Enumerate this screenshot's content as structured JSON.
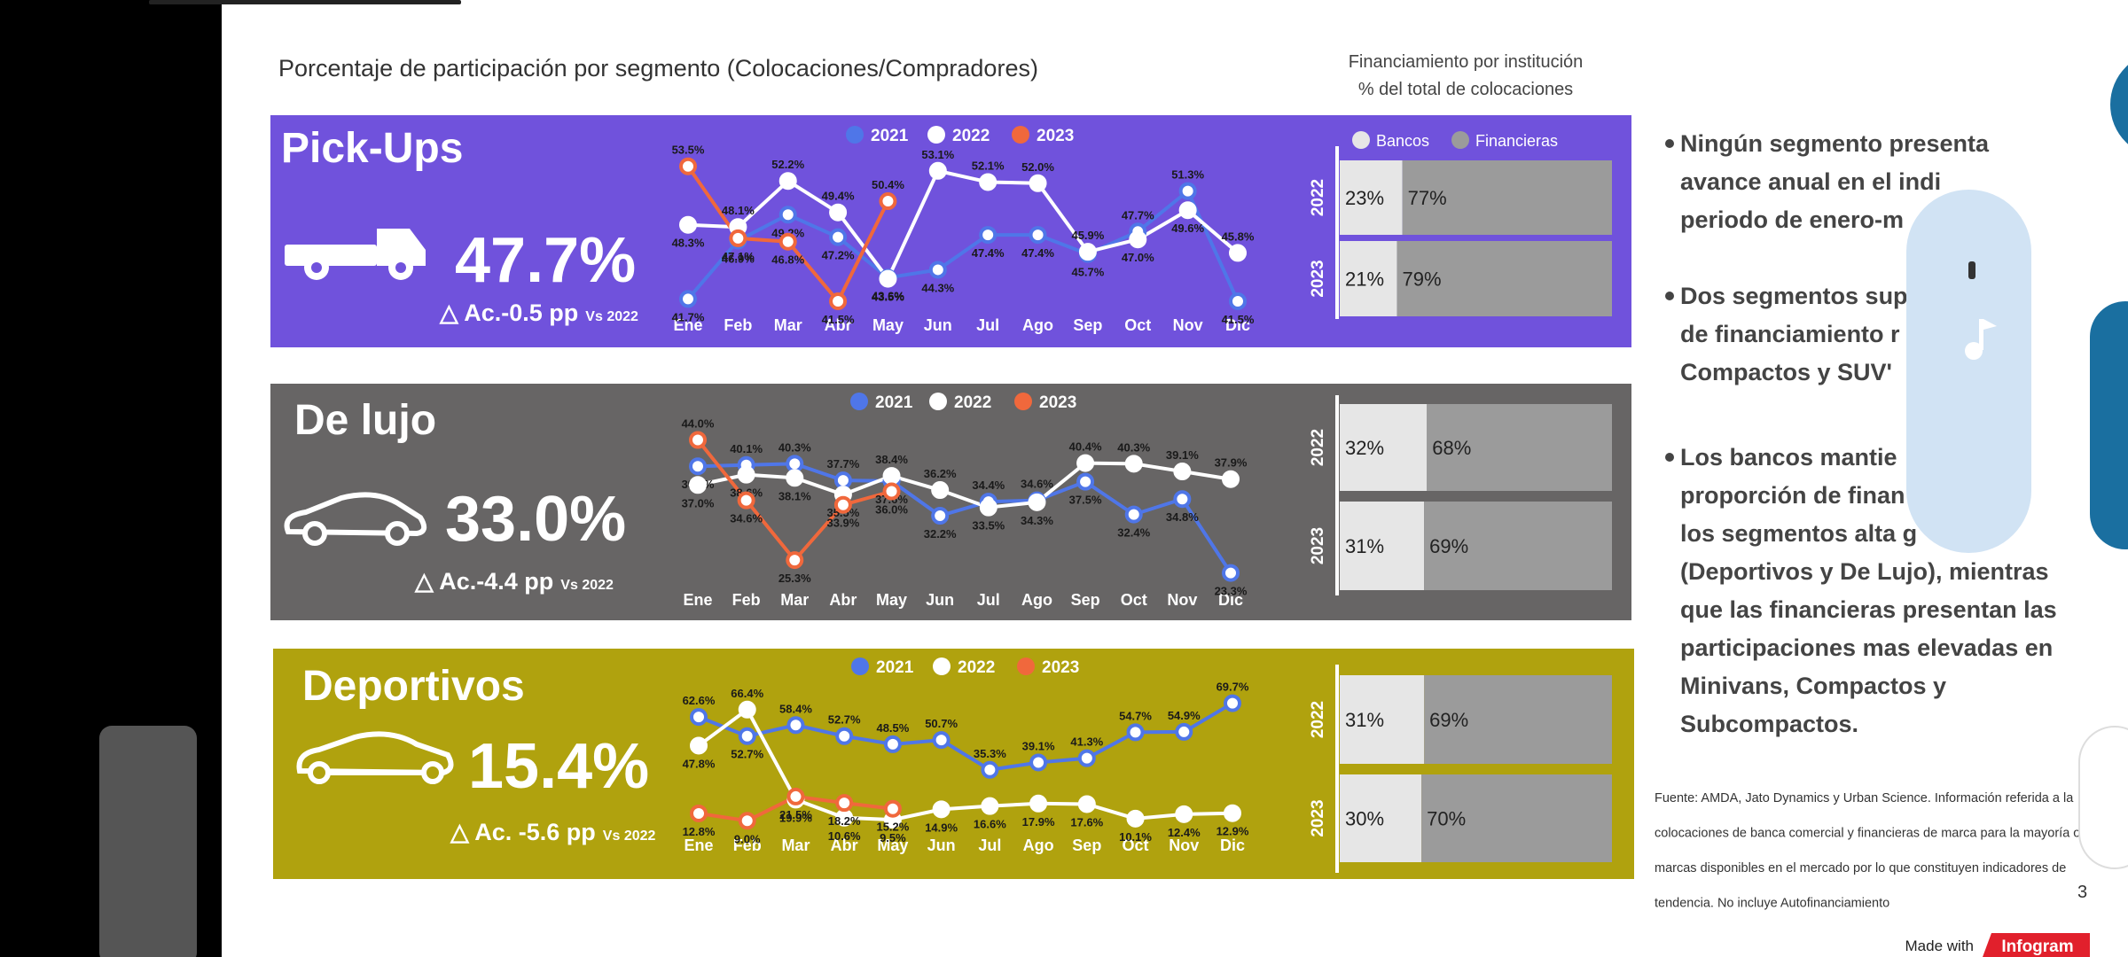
{
  "title": "Porcentaje de participación por segmento (Colocaciones/Compradores)",
  "chart_data": [
    {
      "type": "line",
      "title": "Pick-Ups",
      "kpi": "47.7%",
      "delta": "△ Ac.-0.5 pp",
      "delta_note": "Vs 2022",
      "background": "#7052dc",
      "categories": [
        "Ene",
        "Feb",
        "Mar",
        "Abr",
        "May",
        "Jun",
        "Jul",
        "Ago",
        "Sep",
        "Oct",
        "Nov",
        "Dic"
      ],
      "ylim": [
        40,
        56
      ],
      "series": [
        {
          "name": "2021",
          "color": "#4f76e8",
          "values": [
            41.7,
            46.9,
            49.2,
            47.2,
            43.6,
            44.3,
            47.4,
            47.4,
            45.7,
            47.7,
            51.3,
            41.5
          ],
          "value_labels": [
            "41.7%",
            "46.9%",
            "49.2%",
            "47.2%",
            "43.6%",
            "44.3%",
            "47.4%",
            "47.4%",
            "45.7%",
            "47.7%",
            "51.3%",
            "41.5%"
          ]
        },
        {
          "name": "2022",
          "color": "#ffffff",
          "values": [
            48.3,
            48.1,
            52.2,
            49.4,
            43.5,
            53.1,
            52.1,
            52.0,
            45.9,
            47.0,
            49.6,
            45.8
          ],
          "value_labels": [
            "48.3%",
            "48.1%",
            "52.2%",
            "49.4%",
            "43.5%",
            "53.1%",
            "52.1%",
            "52.0%",
            "45.9%",
            "47.0%",
            "49.6%",
            "45.8%"
          ]
        },
        {
          "name": "2023",
          "color": "#f0683c",
          "values": [
            53.5,
            47.1,
            46.8,
            41.5,
            50.4,
            null,
            null,
            null,
            null,
            null,
            null,
            null
          ],
          "value_labels": [
            "53.5%",
            "47.1%",
            "46.8%",
            "41.5%",
            "50.4%",
            null,
            null,
            null,
            null,
            null,
            null,
            null
          ]
        }
      ]
    },
    {
      "type": "line",
      "title": "De lujo",
      "kpi": "33.0%",
      "delta": "△ Ac.-4.4 pp",
      "delta_note": "Vs 2022",
      "background": "#676565",
      "categories": [
        "Ene",
        "Feb",
        "Mar",
        "Abr",
        "May",
        "Jun",
        "Jul",
        "Ago",
        "Sep",
        "Oct",
        "Nov",
        "Dic"
      ],
      "ylim": [
        22,
        46
      ],
      "series": [
        {
          "name": "2021",
          "color": "#4f76e8",
          "values": [
            39.9,
            40.1,
            40.3,
            37.7,
            37.6,
            32.2,
            34.4,
            34.6,
            37.5,
            32.4,
            34.8,
            23.3
          ],
          "value_labels": [
            "39.9%",
            "40.1%",
            "40.3%",
            "37.7%",
            "37.6%",
            "32.2%",
            "34.4%",
            "34.6%",
            "37.5%",
            "32.4%",
            "34.8%",
            "23.3%"
          ]
        },
        {
          "name": "2022",
          "color": "#ffffff",
          "values": [
            37.0,
            38.6,
            38.1,
            35.5,
            38.4,
            36.2,
            33.5,
            34.3,
            40.4,
            40.3,
            39.1,
            37.9
          ],
          "value_labels": [
            "37.0%",
            "38.6%",
            "38.1%",
            "35.5%",
            "38.4%",
            "36.2%",
            "33.5%",
            "34.3%",
            "40.4%",
            "40.3%",
            "39.1%",
            "37.9%"
          ]
        },
        {
          "name": "2023",
          "color": "#f0683c",
          "values": [
            44.0,
            34.6,
            25.3,
            33.9,
            36.0,
            null,
            null,
            null,
            null,
            null,
            null,
            null
          ],
          "value_labels": [
            "44.0%",
            "34.6%",
            "25.3%",
            "33.9%",
            "36.0%",
            null,
            null,
            null,
            null,
            null,
            null,
            null
          ]
        }
      ]
    },
    {
      "type": "line",
      "title": "Deportivos",
      "kpi": "15.4%",
      "delta": "△ Ac. -5.6 pp",
      "delta_note": "Vs 2022",
      "background": "#b0a20e",
      "categories": [
        "Ene",
        "Feb",
        "Mar",
        "Abr",
        "May",
        "Jun",
        "Jul",
        "Ago",
        "Sep",
        "Oct",
        "Nov",
        "Dic"
      ],
      "ylim": [
        5,
        75
      ],
      "series": [
        {
          "name": "2021",
          "color": "#4f76e8",
          "values": [
            62.6,
            52.7,
            58.4,
            52.7,
            48.5,
            50.7,
            35.3,
            39.1,
            41.3,
            54.7,
            54.9,
            69.7
          ],
          "value_labels": [
            "62.6%",
            "52.7%",
            "58.4%",
            "52.7%",
            "48.5%",
            "50.7%",
            "35.3%",
            "39.1%",
            "41.3%",
            "54.7%",
            "54.9%",
            "69.7%"
          ]
        },
        {
          "name": "2022",
          "color": "#ffffff",
          "values": [
            47.8,
            66.4,
            19.9,
            10.6,
            9.5,
            14.9,
            16.6,
            17.9,
            17.6,
            10.1,
            12.4,
            12.9
          ],
          "value_labels": [
            "47.8%",
            "66.4%",
            "19.9%",
            "10.6%",
            "9.5%",
            "14.9%",
            "16.6%",
            "17.9%",
            "17.6%",
            "10.1%",
            "12.4%",
            "12.9%"
          ]
        },
        {
          "name": "2023",
          "color": "#f0683c",
          "values": [
            12.8,
            9.0,
            21.5,
            18.2,
            15.2,
            null,
            null,
            null,
            null,
            null,
            null,
            null
          ],
          "value_labels": [
            "12.8%",
            "9.0%",
            "21.5%",
            "18.2%",
            "15.2%",
            null,
            null,
            null,
            null,
            null,
            null,
            null
          ]
        }
      ]
    },
    {
      "type": "stacked_hbar",
      "title": "Financiamiento por institución",
      "subtitle": "% del total de colocaciones",
      "categories": [
        "2022",
        "2023",
        "2022",
        "2023",
        "2022",
        "2023"
      ],
      "xlim": [
        0,
        100
      ],
      "series": [
        {
          "name": "Bancos",
          "color": "#e6e6e6",
          "values": [
            23,
            21,
            32,
            31,
            31,
            30
          ],
          "value_labels": [
            "23%",
            "21%",
            "32%",
            "31%",
            "31%",
            "30%"
          ]
        },
        {
          "name": "Financieras",
          "color": "#9b9b9b",
          "values": [
            77,
            79,
            68,
            69,
            69,
            70
          ],
          "value_labels": [
            "77%",
            "79%",
            "68%",
            "69%",
            "69%",
            "70%"
          ]
        }
      ]
    }
  ],
  "bullets": [
    [
      "Ningún segmento presenta",
      "avance anual en el indi",
      "periodo de enero-m"
    ],
    [
      "Dos segmentos sup",
      "de financiamiento r",
      "Compactos y  SUV'"
    ],
    [
      "Los bancos mantie",
      "proporción de finan",
      "los segmentos alta g",
      "(Deportivos y De Lujo), mientras",
      "que las financieras presentan las",
      "participaciones mas elevadas en",
      "Minivans, Compactos y",
      "Subcompactos."
    ]
  ],
  "source": [
    "Fuente: AMDA, Jato Dynamics y Urban Science. Información referida a la",
    "colocaciones de banca comercial y financieras de marca para la mayoría o",
    "marcas disponibles en el mercado por lo que constituyen indicadores de",
    "tendencia. No incluye Autofinanciamiento"
  ],
  "page_number": "3",
  "badge": {
    "made_with": "Made with",
    "brand": "Infogram"
  }
}
